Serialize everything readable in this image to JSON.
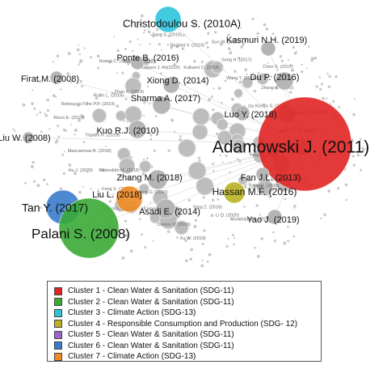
{
  "nodes": [
    {
      "label": "Christodoulou S. (2010A)"
    },
    {
      "label": "Kasmuri N.H. (2019)"
    },
    {
      "label": "Ponte B. (2016)"
    },
    {
      "label": "Firat M. (2008)"
    },
    {
      "label": "Xiong D. (2014)"
    },
    {
      "label": "Du P. (2016)"
    },
    {
      "label": "Sharma A. (2017)"
    },
    {
      "label": "Luo Y. (2018)"
    },
    {
      "label": "Liu W. (2008)"
    },
    {
      "label": "Kuo R.J. (2010)"
    },
    {
      "label": "Adamowski J. (2011)"
    },
    {
      "label": "Fan J.L. (2013)"
    },
    {
      "label": "Zhang M. (2018)"
    },
    {
      "label": "Hassan M.F. (2016)"
    },
    {
      "label": "Tan Y. (2017)"
    },
    {
      "label": "Liu L. (2018)"
    },
    {
      "label": "Asadi E. (2014)"
    },
    {
      "label": "Palani S. (2008)"
    },
    {
      "label": "Yao J. (2019)"
    }
  ],
  "small_labels": [
    "Kulkarni C. (2018)",
    "Sun W. (2017)",
    "Song H. (2017)",
    "Wang Y. (2016)",
    "Chen S. (2017)",
    "Zhang R. (2016)",
    "Kocsis S. (2018)",
    "Haider S.A. (2019)",
    "Aiken V.C.F. (2019)",
    "Smit V.M. (2014)",
    "Yang Y. (2016)",
    "Salazar M. (2019)",
    "Ma H. (2020)",
    "D'Amico E. (2019)",
    "Munkhdalai L. (2019)",
    "Li Q. (2020)",
    "Yang Z. (2016)",
    "Xu W. (2019)",
    "Ozerov V. (2019)",
    "Ul Haque A. (2011)",
    "Peng C. (2017)",
    "Nanni L. (2019)",
    "Feng X. (2019)",
    "Badroddin M. (2018)",
    "Hu J. (2020)",
    "Mascarenas B. (2018)",
    "Tripathi R. (2019)",
    "Rizzo E. (2019)",
    "Rebouças Filho P.P. (2019)",
    "Rollin L. (2019)",
    "Zhao X. (2019)",
    "Huang C. (2018)",
    "Azami S. (2016)",
    "Kuppers J.-P. (2019)",
    "Jiang S. (2019)",
    "Baghini V. (2019)"
  ],
  "legend": {
    "items": [
      {
        "label": "Cluster 1 - Clean Water & Sanitation (SDG-11)",
        "color": "#e02424"
      },
      {
        "label": "Cluster 2 - Clean Water & Sanitation (SDG-11)",
        "color": "#3aaa35"
      },
      {
        "label": "Cluster 3 - Climate Action (SDG-13)",
        "color": "#2ec4dc"
      },
      {
        "label": "Cluster 4 - Responsible Consumption and Production (SDG- 12)",
        "color": "#b9b323"
      },
      {
        "label": "Cluster 5 - Clean Water & Sanitation (SDG-11)",
        "color": "#9b63cc"
      },
      {
        "label": "Cluster 6 - Clean Water & Sanitation (SDG-11)",
        "color": "#3a7ccc"
      },
      {
        "label": "Cluster 7 - Climate Action (SDG-13)",
        "color": "#ee8a22"
      }
    ]
  }
}
